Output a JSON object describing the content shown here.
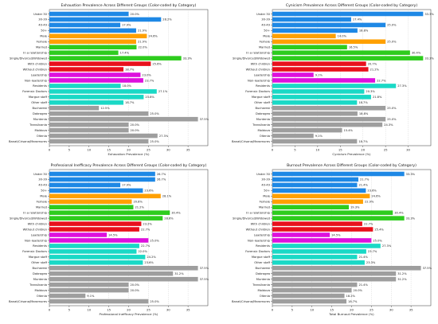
{
  "chart_data": [
    {
      "type": "bar",
      "orientation": "horizontal",
      "title": "Exhaustion Prevalence Across Different Groups (Color-coded by Category)",
      "xlabel": "Exhaustion Prevalence (%)",
      "xlim": [
        0,
        40
      ],
      "xticks": [
        "0",
        "5",
        "10",
        "15",
        "20",
        "25",
        "30",
        "35"
      ],
      "grid": true,
      "categories": [
        "Under 30",
        "30-39",
        "40-49",
        "50+",
        "Male",
        "Female",
        "Married",
        "In a relationship",
        "Single/Divorced/Widowed",
        "With children",
        "Without children",
        "Leadership",
        "Non-leadership",
        "Residents",
        "Forensic Doctors",
        "Morgue staff",
        "Other staff",
        "Bucharest",
        "Dobrogea",
        "Muntenia",
        "Transilvania",
        "Moldova",
        "Oltenia",
        "Banat/Crisana/Maramures"
      ],
      "values": [
        20.0,
        28.2,
        17.9,
        21.9,
        24.6,
        21.9,
        22.0,
        17.4,
        33.3,
        25.6,
        18.7,
        23.0,
        23.7,
        18.0,
        27.1,
        23.8,
        18.7,
        12.5,
        25.0,
        37.5,
        20.0,
        20.0,
        27.3,
        25.0
      ],
      "labels": [
        "20.0%",
        "28.2%",
        "17.9%",
        "21.9%",
        "24.6%",
        "21.9%",
        "22.0%",
        "17.4%",
        "33.3%",
        "25.6%",
        "18.7%",
        "23.0%",
        "23.7%",
        "18.0%",
        "27.1%",
        "23.8%",
        "18.7%",
        "12.5%",
        "25.0%",
        "37.5%",
        "20.0%",
        "20.0%",
        "27.3%",
        "25.0%"
      ]
    },
    {
      "type": "bar",
      "orientation": "horizontal",
      "title": "Cynicism Prevalence Across Different Groups (Color-coded by Category)",
      "xlabel": "Cynicism Prevalence (%)",
      "xlim": [
        0,
        35
      ],
      "xticks": [
        "0",
        "5",
        "10",
        "15",
        "20",
        "25",
        "30"
      ],
      "grid": true,
      "categories": [
        "Under 30",
        "30-39",
        "40-49",
        "50+",
        "Male",
        "Female",
        "Married",
        "In a relationship",
        "Single/Divorced/Widowed",
        "With children",
        "Without children",
        "Leadership",
        "Non-leadership",
        "Residents",
        "Forensic Doctors",
        "Morgue staff",
        "Other staff",
        "Bucharest",
        "Dobrogea",
        "Muntenia",
        "Transilvania",
        "Moldova",
        "Oltenia",
        "Banat/Crisana/Maramures"
      ],
      "values": [
        33.3,
        17.4,
        25.0,
        18.8,
        14.0,
        25.0,
        16.5,
        30.4,
        33.3,
        20.7,
        21.2,
        9.1,
        22.7,
        27.3,
        20.3,
        21.8,
        18.7,
        25.0,
        18.8,
        25.0,
        24.3,
        15.4,
        9.1,
        18.7
      ],
      "labels": [
        "33.3%",
        "17.4%",
        "25.0%",
        "18.8%",
        "14.0%",
        "25.0%",
        "16.5%",
        "30.4%",
        "33.3%",
        "20.7%",
        "21.2%",
        "9.1%",
        "22.7%",
        "27.3%",
        "20.3%",
        "21.8%",
        "18.7%",
        "25.0%",
        "18.8%",
        "25.0%",
        "24.3%",
        "15.4%",
        "9.1%",
        "18.7%"
      ]
    },
    {
      "type": "bar",
      "orientation": "horizontal",
      "title": "Professional Inefficacy Prevalence Across Different Groups (Color-coded by Category)",
      "xlabel": "Professional Inefficacy Prevalence (%)",
      "xlim": [
        0,
        40
      ],
      "xticks": [
        "0",
        "5",
        "10",
        "15",
        "20",
        "25",
        "30",
        "35"
      ],
      "grid": true,
      "categories": [
        "Under 30",
        "30-39",
        "40-49",
        "50+",
        "Male",
        "Female",
        "Married",
        "In a relationship",
        "Single/Divorced/Widowed",
        "With children",
        "Without children",
        "Leadership",
        "Non-leadership",
        "Residents",
        "Forensic Doctors",
        "Morgue staff",
        "Other staff",
        "Bucharest",
        "Dobrogea",
        "Muntenia",
        "Transilvania",
        "Moldova",
        "Oltenia",
        "Banat/Crisana/Maramures"
      ],
      "values": [
        26.7,
        26.7,
        17.9,
        23.6,
        28.1,
        20.8,
        21.2,
        30.4,
        28.6,
        23.2,
        22.7,
        14.5,
        25.0,
        22.7,
        22.0,
        24.2,
        23.6,
        37.5,
        31.2,
        37.5,
        20.0,
        20.0,
        9.1,
        25.0
      ],
      "labels": [
        "26.7%",
        "26.7%",
        "17.9%",
        "23.6%",
        "28.1%",
        "20.8%",
        "21.2%",
        "30.4%",
        "28.6%",
        "23.2%",
        "22.7%",
        "14.5%",
        "25.0%",
        "22.7%",
        "22.0%",
        "24.2%",
        "23.6%",
        "37.5%",
        "31.2%",
        "37.5%",
        "20.0%",
        "20.0%",
        "9.1%",
        "25.0%"
      ]
    },
    {
      "type": "bar",
      "orientation": "horizontal",
      "title": "Burnout Prevalence Across Different Groups (Color-coded by Category)",
      "xlabel": "Total Burnout Prevalence (%)",
      "xlim": [
        0,
        40
      ],
      "xticks": [
        "0",
        "5",
        "10",
        "15",
        "20",
        "25",
        "30",
        "35"
      ],
      "grid": true,
      "categories": [
        "Under 30",
        "30-39",
        "40-49",
        "50+",
        "Male",
        "Female",
        "Married",
        "In a relationship",
        "Single/Divorced/Widowed",
        "With children",
        "Without children",
        "Leadership",
        "Non-leadership",
        "Residents",
        "Forensic Doctors",
        "Morgue staff",
        "Other staff",
        "Bucharest",
        "Dobrogea",
        "Muntenia",
        "Transilvania",
        "Moldova",
        "Oltenia",
        "Banat/Crisana/Maramures"
      ],
      "values": [
        33.3,
        21.7,
        21.4,
        23.6,
        24.6,
        22.9,
        19.3,
        30.4,
        33.3,
        22.7,
        25.4,
        14.5,
        25.0,
        27.3,
        23.7,
        21.4,
        23.3,
        37.5,
        31.2,
        31.2,
        21.4,
        20.0,
        18.2,
        18.7
      ],
      "labels": [
        "33.3%",
        "21.7%",
        "21.4%",
        "23.6%",
        "24.6%",
        "22.9%",
        "19.3%",
        "30.4%",
        "33.3%",
        "22.7%",
        "25.4%",
        "14.5%",
        "25.0%",
        "27.3%",
        "23.7%",
        "21.4%",
        "23.3%",
        "37.5%",
        "31.2%",
        "31.2%",
        "21.4%",
        "20.0%",
        "18.2%",
        "18.7%"
      ]
    }
  ],
  "category_colors": [
    "#1e88e5",
    "#1e88e5",
    "#1e88e5",
    "#1e88e5",
    "#ffa000",
    "#ffa000",
    "#2ecc1e",
    "#2ecc1e",
    "#2ecc1e",
    "#e8101c",
    "#e8101c",
    "#dd10dd",
    "#dd10dd",
    "#1ad9c6",
    "#1ad9c6",
    "#1ad9c6",
    "#1ad9c6",
    "#9e9e9e",
    "#9e9e9e",
    "#9e9e9e",
    "#9e9e9e",
    "#9e9e9e",
    "#9e9e9e",
    "#9e9e9e"
  ]
}
